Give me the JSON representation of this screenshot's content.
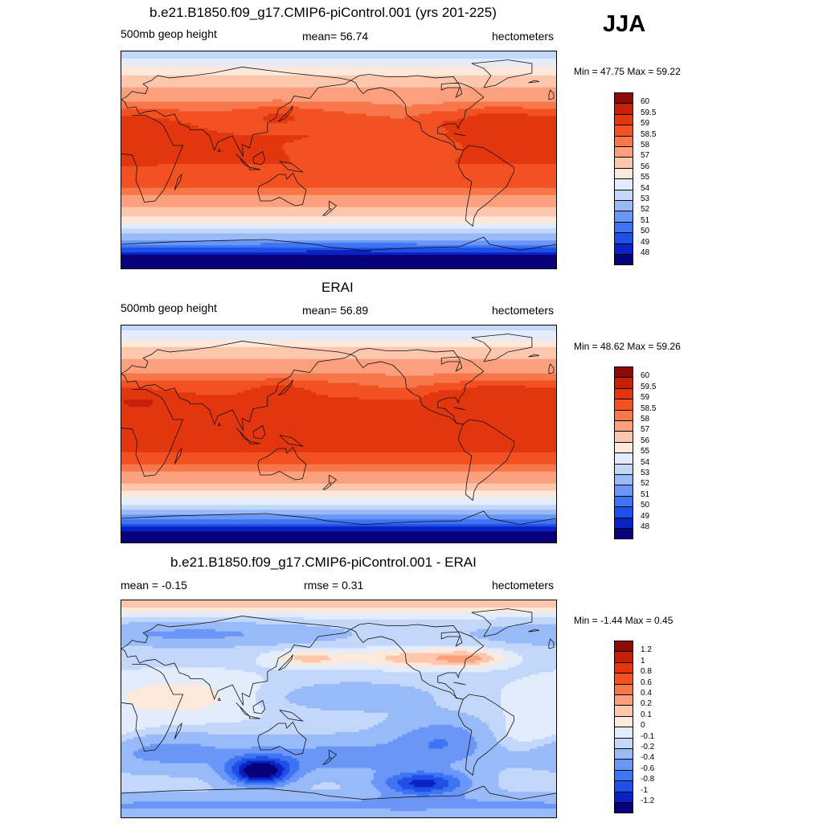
{
  "season": "JJA",
  "panels": [
    {
      "title": "b.e21.B1850.f09_g17.CMIP6-piControl.001 (yrs 201-225)",
      "left_label": "500mb geop height",
      "center_label": "mean=  56.74",
      "right_label": "hectometers",
      "minmax": "Min =  47.75 Max =  59.22",
      "colors": [
        "#08007a",
        "#0a22c4",
        "#1e4fe6",
        "#3d74f4",
        "#6a97f7",
        "#98baf8",
        "#c2d7f9",
        "#e2ecfb",
        "#fde9dc",
        "#fcc7ad",
        "#fba07c",
        "#f7764a",
        "#f25122",
        "#e3360f",
        "#c6200a",
        "#8e0a06"
      ],
      "labels": [
        "48",
        "49",
        "50",
        "51",
        "52",
        "53",
        "54",
        "55",
        "56",
        "57",
        "58",
        "58.5",
        "59",
        "59.5",
        "60"
      ],
      "field": "z500_model"
    },
    {
      "title": "ERAI",
      "left_label": "500mb geop height",
      "center_label": "mean=  56.89",
      "right_label": "hectometers",
      "minmax": "Min =  48.62 Max =  59.26",
      "colors": [
        "#08007a",
        "#0a22c4",
        "#1e4fe6",
        "#3d74f4",
        "#6a97f7",
        "#98baf8",
        "#c2d7f9",
        "#e2ecfb",
        "#fde9dc",
        "#fcc7ad",
        "#fba07c",
        "#f7764a",
        "#f25122",
        "#e3360f",
        "#c6200a",
        "#8e0a06"
      ],
      "labels": [
        "48",
        "49",
        "50",
        "51",
        "52",
        "53",
        "54",
        "55",
        "56",
        "57",
        "58",
        "58.5",
        "59",
        "59.5",
        "60"
      ],
      "field": "z500_obs"
    },
    {
      "title": "b.e21.B1850.f09_g17.CMIP6-piControl.001 - ERAI",
      "left_label": "mean =  -0.15",
      "center_label": "rmse =   0.31",
      "right_label": "hectometers",
      "minmax": "Min =  -1.44 Max =   0.45",
      "colors": [
        "#08007a",
        "#0a22c4",
        "#1e4fe6",
        "#3d74f4",
        "#6a97f7",
        "#98baf8",
        "#c2d7f9",
        "#e2ecfb",
        "#fde9dc",
        "#fcc7ad",
        "#fba07c",
        "#f7764a",
        "#f25122",
        "#e3360f",
        "#c6200a",
        "#8e0a06"
      ],
      "labels": [
        "-1.2",
        "-1",
        "-0.8",
        "-0.6",
        "-0.4",
        "-0.2",
        "-0.1",
        "0",
        "0.1",
        "0.2",
        "0.4",
        "0.6",
        "0.8",
        "1",
        "1.2"
      ],
      "field": "difference"
    }
  ]
}
